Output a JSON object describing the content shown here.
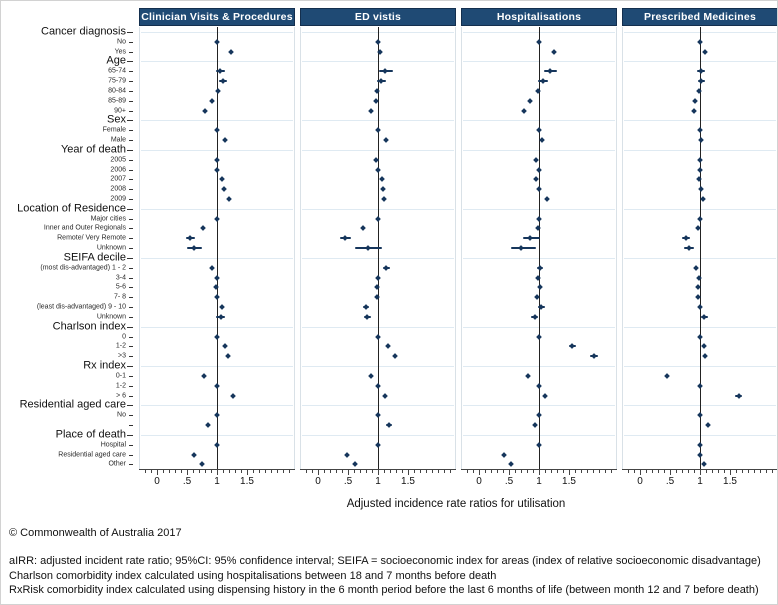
{
  "footer": {
    "copyright": "© Commonwealth of Australia 2017",
    "lines": [
      "aIRR: adjusted incident rate ratio; 95%CI: 95% confidence interval; SEIFA = socioeconomic index for areas (index of relative socioeconomic disadvantage)",
      "Charlson comorbidity index calculated using hospitalisations between 18 and 7 months before death",
      "RxRisk comorbidity index calculated using dispensing history in the 6 month period before the last 6 months of life (between month 12 and 7 before death)"
    ]
  },
  "colors": {
    "panel_header_bg": "#1f4a74",
    "panel_header_text": "#ffffff",
    "point": "#16365c",
    "reference_line": "#222222",
    "gridline": "#dfeaf2"
  },
  "chart_data": {
    "type": "scatter",
    "subtype": "forest-plot",
    "title": "",
    "xlabel": "Adjusted incidence rate ratios for utilisation",
    "panels": [
      "Clinician Visits & Procedures",
      "ED vistis",
      "Hospitalisations",
      "Prescribed Medicines"
    ],
    "x_axis": {
      "range": [
        -0.3,
        2.3
      ],
      "tick_values": [
        0,
        0.5,
        1,
        1.5
      ],
      "tick_labels": [
        "0",
        ".5",
        "1",
        "1.5"
      ],
      "minor_tick_step": 0.1,
      "reference_line_at": 1
    },
    "legend": "values are aIRR per panel in order: Clinician Visits & Procedures, ED vistis, Hospitalisations, Prescribed Medicines",
    "rows": [
      {
        "label": "Cancer diagnosis",
        "kind": "group"
      },
      {
        "label": "No",
        "kind": "item",
        "v": [
          1.0,
          1.0,
          1.0,
          1.0
        ]
      },
      {
        "label": "Yes",
        "kind": "item",
        "v": [
          1.24,
          1.04,
          1.25,
          1.08
        ]
      },
      {
        "label": "Age",
        "kind": "group"
      },
      {
        "label": "65-74",
        "kind": "item",
        "v": [
          1.05,
          1.12,
          1.19,
          1.01
        ],
        "ci": [
          [
            0.98,
            1.13
          ],
          [
            1.01,
            1.25
          ],
          [
            1.09,
            1.3
          ],
          [
            0.95,
            1.08
          ]
        ]
      },
      {
        "label": "75-79",
        "kind": "item",
        "v": [
          1.1,
          1.05,
          1.07,
          1.02
        ],
        "ci": [
          [
            1.03,
            1.17
          ],
          [
            0.98,
            1.13
          ],
          [
            0.99,
            1.16
          ],
          [
            0.97,
            1.08
          ]
        ]
      },
      {
        "label": "80-84",
        "kind": "item",
        "v": [
          1.01,
          0.99,
          0.98,
          0.99
        ]
      },
      {
        "label": "85-89",
        "kind": "item",
        "v": [
          0.92,
          0.97,
          0.84,
          0.92
        ]
      },
      {
        "label": "90+",
        "kind": "item",
        "v": [
          0.8,
          0.89,
          0.75,
          0.9
        ]
      },
      {
        "label": "Sex",
        "kind": "group"
      },
      {
        "label": "Female",
        "kind": "item",
        "v": [
          1.0,
          1.0,
          1.0,
          1.0
        ]
      },
      {
        "label": "Male",
        "kind": "item",
        "v": [
          1.14,
          1.14,
          1.05,
          1.01
        ]
      },
      {
        "label": "Year of death",
        "kind": "group"
      },
      {
        "label": "2005",
        "kind": "item",
        "v": [
          1.0,
          0.97,
          0.95,
          1.0
        ],
        "ci": [
          null,
          [
            0.93,
            1.01
          ],
          [
            0.91,
            0.99
          ],
          null
        ]
      },
      {
        "label": "2006",
        "kind": "item",
        "v": [
          1.0,
          1.0,
          1.0,
          1.0
        ]
      },
      {
        "label": "2007",
        "kind": "item",
        "v": [
          1.08,
          1.06,
          0.95,
          0.99
        ]
      },
      {
        "label": "2008",
        "kind": "item",
        "v": [
          1.11,
          1.08,
          1.0,
          1.01
        ]
      },
      {
        "label": "2009",
        "kind": "item",
        "v": [
          1.21,
          1.1,
          1.13,
          1.05
        ]
      },
      {
        "label": "Location of Residence",
        "kind": "group"
      },
      {
        "label": "Major cities",
        "kind": "item",
        "v": [
          1.0,
          1.0,
          1.0,
          1.0
        ]
      },
      {
        "label": "Inner and Outer Regionals",
        "kind": "item",
        "v": [
          0.77,
          0.74,
          0.98,
          0.96
        ]
      },
      {
        "label": "Remote/ Very Remote",
        "kind": "item",
        "v": [
          0.55,
          0.45,
          0.85,
          0.76
        ],
        "ci": [
          [
            0.47,
            0.63
          ],
          [
            0.36,
            0.55
          ],
          [
            0.73,
            1.01
          ],
          [
            0.69,
            0.83
          ]
        ]
      },
      {
        "label": "Unknown",
        "kind": "item",
        "v": [
          0.62,
          0.83,
          0.7,
          0.81
        ],
        "ci": [
          [
            0.5,
            0.74
          ],
          [
            0.62,
            1.06
          ],
          [
            0.52,
            0.95
          ],
          [
            0.73,
            0.9
          ]
        ]
      },
      {
        "label": "SEIFA decile",
        "kind": "group"
      },
      {
        "label": "(most dis-advantaged) 1 - 2",
        "kind": "item",
        "v": [
          0.92,
          1.14,
          1.02,
          0.93
        ],
        "ci": [
          null,
          [
            1.08,
            1.2
          ],
          [
            0.97,
            1.07
          ],
          null
        ]
      },
      {
        "label": "3-4",
        "kind": "item",
        "v": [
          1.0,
          1.0,
          0.98,
          0.98
        ]
      },
      {
        "label": "5-6",
        "kind": "item",
        "v": [
          0.98,
          0.98,
          1.01,
          0.97
        ]
      },
      {
        "label": "7- 8",
        "kind": "item",
        "v": [
          1.0,
          0.98,
          0.96,
          0.97
        ]
      },
      {
        "label": "(least dis-advantaged) 9 - 10",
        "kind": "item",
        "v": [
          1.09,
          0.8,
          1.04,
          1.0
        ],
        "ci": [
          null,
          [
            0.75,
            0.85
          ],
          [
            0.99,
            1.1
          ],
          null
        ]
      },
      {
        "label": "Unknown",
        "kind": "item",
        "v": [
          1.06,
          0.82,
          0.93,
          1.07
        ],
        "ci": [
          [
            0.98,
            1.14
          ],
          [
            0.76,
            0.88
          ],
          [
            0.87,
            0.99
          ],
          [
            1.01,
            1.13
          ]
        ]
      },
      {
        "label": "Charlson index",
        "kind": "group"
      },
      {
        "label": "0",
        "kind": "item",
        "v": [
          1.0,
          1.0,
          1.0,
          1.0
        ]
      },
      {
        "label": "1-2",
        "kind": "item",
        "v": [
          1.14,
          1.17,
          1.56,
          1.06
        ],
        "ci": [
          null,
          null,
          [
            1.5,
            1.62
          ],
          null
        ]
      },
      {
        "label": ">3",
        "kind": "item",
        "v": [
          1.19,
          1.29,
          1.93,
          1.08
        ],
        "ci": [
          null,
          null,
          [
            1.86,
            2.0
          ],
          null
        ]
      },
      {
        "label": "Rx index",
        "kind": "group"
      },
      {
        "label": "0-1",
        "kind": "item",
        "v": [
          0.78,
          0.89,
          0.81,
          0.45
        ]
      },
      {
        "label": "1-2",
        "kind": "item",
        "v": [
          1.0,
          1.0,
          1.0,
          1.0
        ]
      },
      {
        "label": "> 6",
        "kind": "item",
        "v": [
          1.27,
          1.12,
          1.1,
          1.65
        ],
        "ci": [
          null,
          null,
          null,
          [
            1.59,
            1.71
          ]
        ]
      },
      {
        "label": "Residential aged care",
        "kind": "group"
      },
      {
        "label": "No",
        "kind": "item",
        "v": [
          1.0,
          1.0,
          1.0,
          1.0
        ]
      },
      {
        "label": "",
        "kind": "item",
        "v": [
          0.85,
          1.18,
          0.94,
          1.14
        ],
        "ci": [
          null,
          [
            1.13,
            1.23
          ],
          null,
          null
        ]
      },
      {
        "label": "Place of death",
        "kind": "group"
      },
      {
        "label": "Hospital",
        "kind": "item",
        "v": [
          1.0,
          1.0,
          1.0,
          1.0
        ]
      },
      {
        "label": "Residential aged care",
        "kind": "item",
        "v": [
          0.62,
          0.48,
          0.41,
          1.0
        ]
      },
      {
        "label": "Other",
        "kind": "item",
        "v": [
          0.74,
          0.61,
          0.53,
          1.06
        ]
      }
    ]
  }
}
